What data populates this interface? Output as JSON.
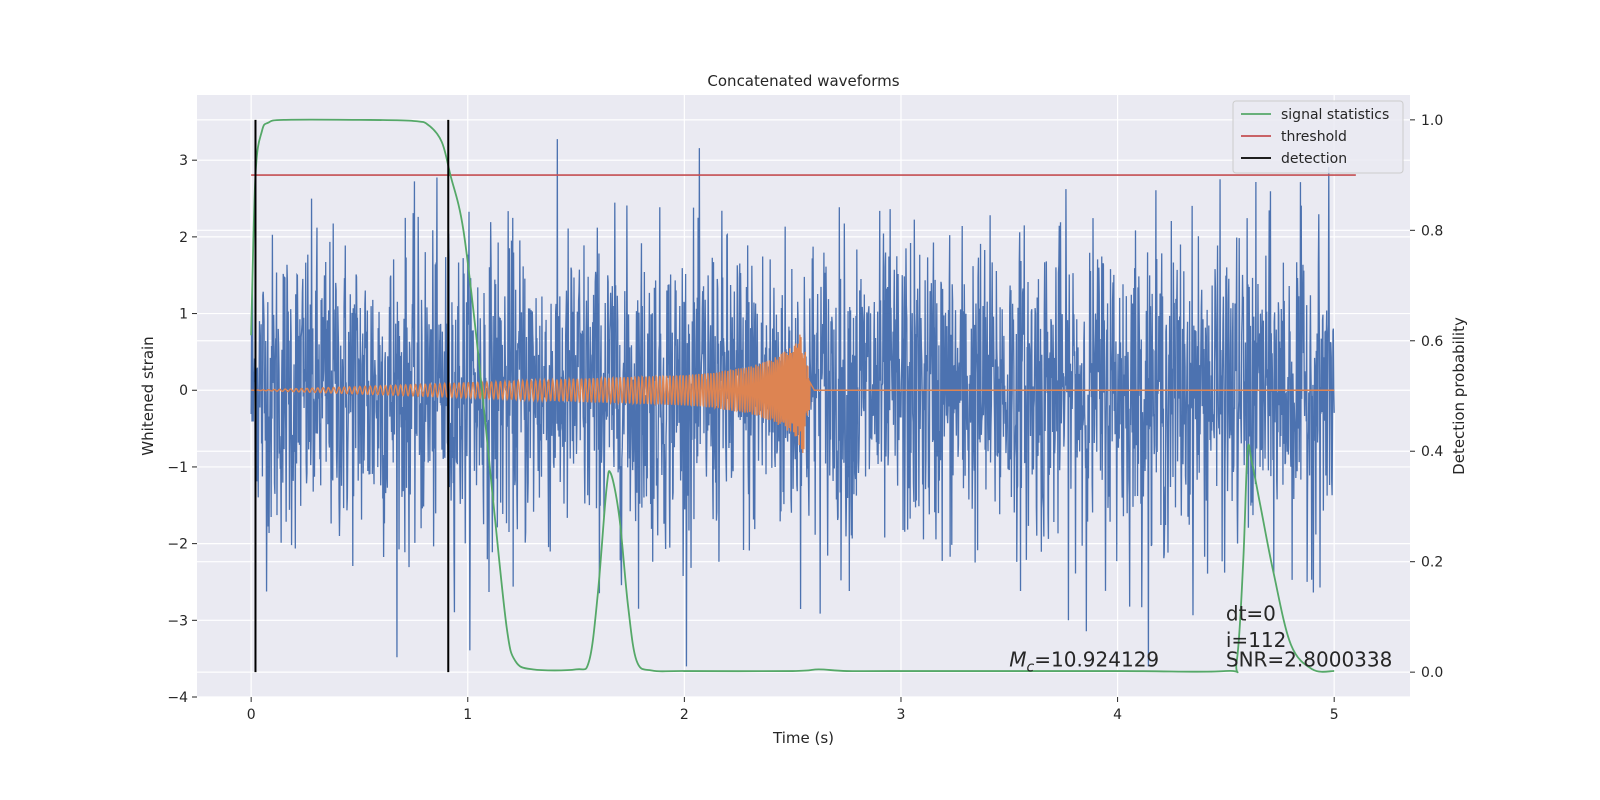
{
  "chart_data": {
    "type": "line",
    "title": "Concatenated waveforms",
    "xlabel": "Time (s)",
    "ylabel": "Whitened strain",
    "y2label": "Detection probability",
    "xlim": [
      -0.25,
      5.35
    ],
    "ylim": [
      -4.0,
      3.85
    ],
    "y2lim": [
      -0.045,
      1.045
    ],
    "x_ticks": [
      0,
      1,
      2,
      3,
      4,
      5
    ],
    "x_tick_labels": [
      "0",
      "1",
      "2",
      "3",
      "4",
      "5"
    ],
    "y_ticks": [
      -4,
      -3,
      -2,
      -1,
      0,
      1,
      2,
      3
    ],
    "y_tick_labels": [
      "−4",
      "−3",
      "−2",
      "−1",
      "0",
      "1",
      "2",
      "3"
    ],
    "y2_ticks": [
      0.0,
      0.2,
      0.4,
      0.6,
      0.8,
      1.0
    ],
    "y2_tick_labels": [
      "0.0",
      "0.2",
      "0.4",
      "0.6",
      "0.8",
      "1.0"
    ],
    "grid": true,
    "legend_position": "top-right",
    "legend": [
      {
        "label": "signal statistics",
        "color": "#55a868"
      },
      {
        "label": "threshold",
        "color": "#c44e52"
      },
      {
        "label": "detection",
        "color": "#000000"
      }
    ],
    "series": [
      {
        "name": "whitened strain",
        "axis": "left",
        "color": "#4c72b0",
        "x_range": [
          0,
          5
        ],
        "amplitude_range": [
          -3.6,
          3.5
        ]
      },
      {
        "name": "injected waveform",
        "axis": "left",
        "color": "#dd8452",
        "x": [
          0,
          2.0,
          2.1,
          2.2,
          2.3,
          2.4,
          2.5,
          2.55,
          2.56,
          2.6,
          5
        ],
        "envelope": [
          0,
          0.09,
          0.1,
          0.12,
          0.14,
          0.18,
          0.26,
          0.38,
          0.2,
          0,
          0
        ]
      },
      {
        "name": "signal statistics",
        "axis": "right",
        "color": "#55a868",
        "x": [
          0.0,
          0.02,
          0.05,
          0.08,
          0.15,
          0.5,
          0.75,
          0.82,
          0.88,
          0.92,
          0.98,
          1.05,
          1.12,
          1.18,
          1.22,
          1.3,
          1.5,
          1.56,
          1.6,
          1.64,
          1.66,
          1.7,
          1.74,
          1.78,
          1.85,
          2.0,
          2.5,
          2.62,
          2.75,
          3.0,
          4.0,
          4.5,
          4.55,
          4.58,
          4.6,
          4.62,
          4.66,
          4.72,
          4.8,
          4.9,
          5.0
        ],
        "y": [
          0.61,
          0.9,
          0.98,
          0.995,
          1.0,
          1.0,
          0.998,
          0.99,
          0.96,
          0.9,
          0.8,
          0.57,
          0.3,
          0.08,
          0.02,
          0.005,
          0.005,
          0.02,
          0.14,
          0.33,
          0.36,
          0.28,
          0.12,
          0.02,
          0.003,
          0.002,
          0.002,
          0.005,
          0.002,
          0.002,
          0.002,
          0.002,
          0.02,
          0.2,
          0.4,
          0.38,
          0.3,
          0.18,
          0.05,
          0.005,
          0.002
        ]
      },
      {
        "name": "threshold",
        "axis": "right",
        "color": "#c44e52",
        "x": [
          0.0,
          5.1
        ],
        "y": [
          0.9,
          0.9
        ]
      },
      {
        "name": "detection",
        "axis": "right",
        "color": "#000000",
        "x": [
          0.02,
          0.91
        ],
        "y_range": [
          0.0,
          1.0
        ]
      }
    ],
    "annotations": [
      {
        "id": "dt",
        "text": "dt=0",
        "x": 4.5,
        "y": -3.0
      },
      {
        "id": "i",
        "text": "i=112",
        "x": 4.5,
        "y": -3.35
      },
      {
        "id": "snr",
        "text": "SNR=2.8000338",
        "x": 4.5,
        "y": -3.6
      },
      {
        "id": "mc",
        "text_main": "M",
        "text_sub": "c",
        "text_rest": "=10.924129",
        "x": 3.5,
        "y": -3.6
      }
    ]
  }
}
